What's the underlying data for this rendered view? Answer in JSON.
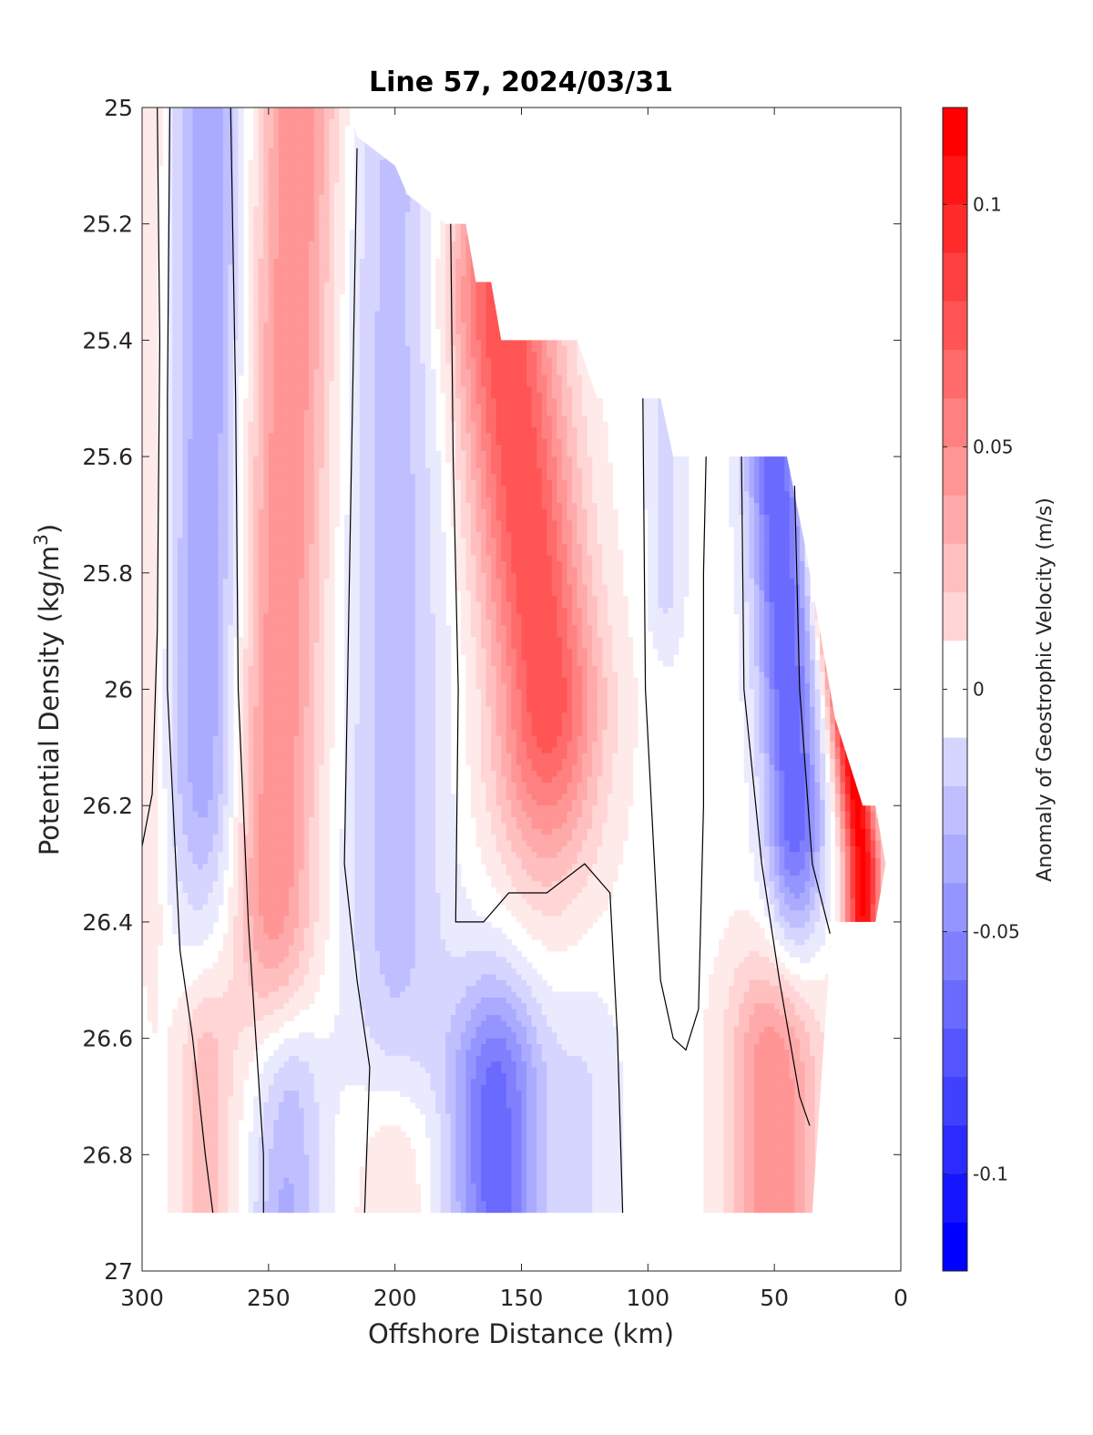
{
  "chart_data": {
    "type": "heatmap",
    "title": "Line 57, 2024/03/31",
    "xlabel": "Offshore Distance (km)",
    "ylabel": "Potential Density (kg/m",
    "ylabel_sup": "3",
    "ylabel_close": ")",
    "colorbar_label": "Anomaly of Geostrophic Velocity (m/s)",
    "xlim": [
      300,
      0
    ],
    "x_reversed": true,
    "ylim": [
      25,
      27
    ],
    "y_reversed": true,
    "clim": [
      -0.12,
      0.12
    ],
    "xticks": [
      300,
      250,
      200,
      150,
      100,
      50,
      0
    ],
    "xtick_labels": [
      "300",
      "250",
      "200",
      "150",
      "100",
      "50",
      "0"
    ],
    "yticks": [
      25,
      25.2,
      25.4,
      25.6,
      25.8,
      26,
      26.2,
      26.4,
      26.6,
      26.8,
      27
    ],
    "ytick_labels": [
      "25",
      "25.2",
      "25.4",
      "25.6",
      "25.8",
      "26",
      "26.2",
      "26.4",
      "26.6",
      "26.8",
      "27"
    ],
    "cbar_ticks": [
      0.1,
      0.05,
      0,
      -0.05,
      -0.1
    ],
    "cbar_tick_labels": [
      "0.1",
      "0.05",
      "0",
      "-0.05",
      "-0.1"
    ],
    "colormap": "blue-white-red",
    "level_step": 0.01,
    "positive_color": "#ff0000",
    "negative_color": "#0000ff",
    "zero_contour_color": "#000000",
    "grid": false,
    "features": [
      {
        "sign": "pos",
        "x0": 296,
        "z0": 25.0,
        "x1": 296,
        "z1": 26.2,
        "peak": 0.015,
        "sx": 4,
        "sz": 0.25
      },
      {
        "sign": "neg",
        "x0": 273,
        "z0": 25.0,
        "x1": 275,
        "z1": 26.1,
        "peak": -0.045,
        "sx": 10,
        "sz": 0.22
      },
      {
        "sign": "pos",
        "x0": 238,
        "z0": 25.0,
        "x1": 248,
        "z1": 26.3,
        "peak": 0.055,
        "sx": 12,
        "sz": 0.25
      },
      {
        "sign": "neg",
        "x0": 200,
        "z0": 25.2,
        "x1": 200,
        "z1": 26.35,
        "peak": -0.03,
        "sx": 14,
        "sz": 0.3
      },
      {
        "sign": "pos",
        "x0": 158,
        "z0": 25.35,
        "x1": 140,
        "z1": 26.0,
        "peak": 0.085,
        "sx": 15,
        "sz": 0.22
      },
      {
        "sign": "neg",
        "x0": 93,
        "z0": 25.5,
        "x1": 93,
        "z1": 25.8,
        "peak": -0.02,
        "sx": 5,
        "sz": 0.1
      },
      {
        "sign": "neg",
        "x0": 50,
        "z0": 25.6,
        "x1": 42,
        "z1": 26.2,
        "peak": -0.075,
        "sx": 8,
        "sz": 0.18
      },
      {
        "sign": "pos",
        "x0": 28,
        "z0": 25.75,
        "x1": 15,
        "z1": 26.3,
        "peak": 0.12,
        "sx": 5,
        "sz": 0.3
      },
      {
        "sign": "pos",
        "x0": 275,
        "z0": 26.65,
        "x1": 275,
        "z1": 26.9,
        "peak": 0.03,
        "sx": 8,
        "sz": 0.12
      },
      {
        "sign": "neg",
        "x0": 243,
        "z0": 26.7,
        "x1": 243,
        "z1": 26.9,
        "peak": -0.04,
        "sx": 10,
        "sz": 0.12
      },
      {
        "sign": "pos",
        "x0": 200,
        "z0": 26.8,
        "x1": 200,
        "z1": 26.9,
        "peak": 0.02,
        "sx": 12,
        "sz": 0.1
      },
      {
        "sign": "neg",
        "x0": 160,
        "z0": 26.7,
        "x1": 160,
        "z1": 26.9,
        "peak": -0.07,
        "sx": 13,
        "sz": 0.15
      },
      {
        "sign": "neg",
        "x0": 125,
        "z0": 26.7,
        "x1": 125,
        "z1": 26.9,
        "peak": -0.015,
        "sx": 10,
        "sz": 0.15
      },
      {
        "sign": "pos",
        "x0": 50,
        "z0": 26.65,
        "x1": 50,
        "z1": 26.9,
        "peak": 0.055,
        "sx": 13,
        "sz": 0.15
      }
    ],
    "data_mask": [
      [
        300,
        25.0
      ],
      [
        218,
        25.0
      ],
      [
        215,
        25.05
      ],
      [
        200,
        25.1
      ],
      [
        195,
        25.15
      ],
      [
        180,
        25.2
      ],
      [
        172,
        25.2
      ],
      [
        168,
        25.3
      ],
      [
        162,
        25.3
      ],
      [
        158,
        25.4
      ],
      [
        128,
        25.4
      ],
      [
        120,
        25.5
      ],
      [
        100,
        25.5
      ],
      [
        95,
        25.5
      ],
      [
        90,
        25.6
      ],
      [
        55,
        25.6
      ],
      [
        45,
        25.6
      ],
      [
        38,
        25.75
      ],
      [
        26,
        26.05
      ],
      [
        15,
        26.2
      ],
      [
        10,
        26.2
      ],
      [
        6,
        26.3
      ],
      [
        10,
        26.4
      ],
      [
        26,
        26.4
      ],
      [
        28,
        26.45
      ],
      [
        35,
        26.9
      ],
      [
        300,
        26.9
      ]
    ],
    "zero_contours": [
      [
        [
          300,
          26.27
        ],
        [
          296,
          26.18
        ],
        [
          294,
          25.9
        ],
        [
          293,
          25.4
        ],
        [
          294,
          25.0
        ]
      ],
      [
        [
          289,
          25.0
        ],
        [
          290,
          25.5
        ],
        [
          290,
          26.0
        ],
        [
          285,
          26.45
        ],
        [
          280,
          26.6
        ],
        [
          275,
          26.8
        ],
        [
          272,
          26.9
        ]
      ],
      [
        [
          265,
          25.0
        ],
        [
          263,
          25.5
        ],
        [
          262,
          26.0
        ],
        [
          258,
          26.4
        ],
        [
          255,
          26.6
        ],
        [
          252,
          26.8
        ],
        [
          252,
          26.9
        ]
      ],
      [
        [
          215,
          25.07
        ],
        [
          218,
          25.8
        ],
        [
          220,
          26.3
        ],
        [
          215,
          26.5
        ],
        [
          210,
          26.65
        ],
        [
          212,
          26.9
        ]
      ],
      [
        [
          178,
          25.2
        ],
        [
          177,
          25.6
        ],
        [
          175,
          26.0
        ],
        [
          176,
          26.4
        ],
        [
          165,
          26.4
        ],
        [
          155,
          26.35
        ],
        [
          140,
          26.35
        ],
        [
          125,
          26.3
        ],
        [
          115,
          26.35
        ],
        [
          112,
          26.6
        ],
        [
          110,
          26.9
        ]
      ],
      [
        [
          102,
          25.5
        ],
        [
          101,
          26.0
        ],
        [
          95,
          26.5
        ],
        [
          90,
          26.6
        ],
        [
          85,
          26.62
        ],
        [
          80,
          26.55
        ],
        [
          78,
          26.2
        ],
        [
          78,
          25.8
        ],
        [
          77,
          25.6
        ]
      ],
      [
        [
          63,
          25.6
        ],
        [
          62,
          26.0
        ],
        [
          55,
          26.3
        ],
        [
          48,
          26.5
        ],
        [
          40,
          26.7
        ],
        [
          36,
          26.75
        ]
      ],
      [
        [
          42,
          25.65
        ],
        [
          40,
          26.0
        ],
        [
          35,
          26.3
        ],
        [
          28,
          26.42
        ]
      ]
    ]
  }
}
